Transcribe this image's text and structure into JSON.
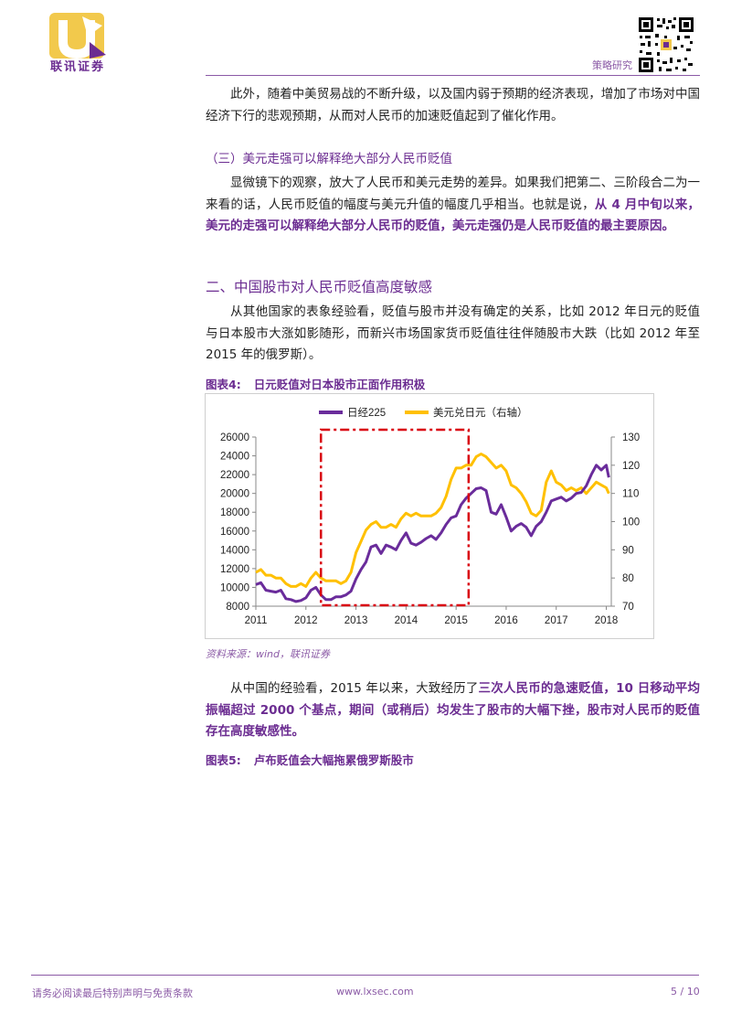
{
  "header": {
    "logo_text": "联讯证券",
    "section": "策略研究"
  },
  "paragraphs": {
    "p1": "此外，随着中美贸易战的不断升级，以及国内弱于预期的经济表现，增加了市场对中国经济下行的悲观预期，从而对人民币的加速贬值起到了催化作用。",
    "sub3": "（三）美元走强可以解释绝大部分人民币贬值",
    "p2_a": "显微镜下的观察，放大了人民币和美元走势的差异。如果我们把第二、三阶段合二为一来看的话，人民币贬值的幅度与美元升值的幅度几乎相当。也就是说，",
    "p2_b": "从 4 月中旬以来，美元的走强可以解释绝大部分人民币的贬值，美元走强仍是人民币贬值的最主要原因。",
    "h2": "二、中国股市对人民币贬值高度敏感",
    "p3": "从其他国家的表象经验看，贬值与股市并没有确定的关系，比如 2012 年日元的贬值与日本股市大涨如影随形，而新兴市场国家货币贬值往往伴随股市大跌（比如 2012 年至 2015 年的俄罗斯）。",
    "p4_a": "从中国的经验看，2015 年以来，大致经历了",
    "p4_b": "三次人民币的急速贬值，10 日移动平均振幅超过 2000 个基点，期间（或稍后）均发生了股市的大幅下挫，股市对人民币的贬值存在高度敏感性。"
  },
  "figure4": {
    "label": "图表4:",
    "title": "日元贬值对日本股市正面作用积极",
    "source": "资料来源：wind，联讯证券"
  },
  "figure5": {
    "label": "图表5:",
    "title": "卢布贬值会大幅拖累俄罗斯股市"
  },
  "chart_data": {
    "type": "line",
    "legend": [
      "日经225",
      "美元兑日元（右轴）"
    ],
    "legend_placement": "top",
    "x_ticks": [
      "2011",
      "2012",
      "2013",
      "2014",
      "2015",
      "2016",
      "2017",
      "2018"
    ],
    "y_left_ticks": [
      "8000",
      "10000",
      "12000",
      "14000",
      "16000",
      "18000",
      "20000",
      "22000",
      "24000",
      "26000"
    ],
    "y_right_ticks": [
      "70",
      "80",
      "90",
      "100",
      "110",
      "120",
      "130"
    ],
    "y_left_range": [
      8000,
      26000
    ],
    "y_right_range": [
      70,
      130
    ],
    "x_range": [
      2011,
      2018.1
    ],
    "colors": {
      "nikkei": "#6a2c9b",
      "usdjpy": "#ffc000",
      "box": "#d9000d"
    },
    "highlight_box": {
      "x_start": 2012.3,
      "x_end": 2015.25,
      "y_left_bottom": 8100,
      "y_left_top": 26000
    },
    "series": [
      {
        "name": "日经225",
        "axis": "left",
        "x": [
          2011.0,
          2011.1,
          2011.2,
          2011.3,
          2011.4,
          2011.5,
          2011.6,
          2011.7,
          2011.8,
          2011.9,
          2012.0,
          2012.1,
          2012.2,
          2012.3,
          2012.4,
          2012.5,
          2012.6,
          2012.7,
          2012.8,
          2012.9,
          2013.0,
          2013.1,
          2013.2,
          2013.3,
          2013.4,
          2013.5,
          2013.6,
          2013.7,
          2013.8,
          2013.9,
          2014.0,
          2014.1,
          2014.2,
          2014.3,
          2014.4,
          2014.5,
          2014.6,
          2014.7,
          2014.8,
          2014.9,
          2015.0,
          2015.1,
          2015.2,
          2015.3,
          2015.4,
          2015.5,
          2015.6,
          2015.7,
          2015.8,
          2015.9,
          2016.0,
          2016.1,
          2016.2,
          2016.3,
          2016.4,
          2016.5,
          2016.6,
          2016.7,
          2016.8,
          2016.9,
          2017.0,
          2017.1,
          2017.2,
          2017.3,
          2017.4,
          2017.5,
          2017.6,
          2017.7,
          2017.8,
          2017.9,
          2018.0,
          2018.05
        ],
        "values": [
          10300,
          10500,
          9700,
          9600,
          9500,
          9700,
          8800,
          8700,
          8500,
          8600,
          8900,
          9700,
          10000,
          9200,
          8700,
          8700,
          9000,
          9000,
          9200,
          9600,
          10900,
          11900,
          12700,
          14300,
          14500,
          13600,
          14500,
          14300,
          14000,
          15000,
          15800,
          14700,
          14500,
          14800,
          15200,
          15500,
          15100,
          15800,
          16700,
          17400,
          17600,
          18800,
          19500,
          20000,
          20500,
          20600,
          20300,
          18000,
          17800,
          18800,
          17500,
          16000,
          16500,
          16800,
          16400,
          15500,
          16500,
          17000,
          18000,
          19200,
          19400,
          19600,
          19200,
          19500,
          20000,
          20100,
          20800,
          22000,
          23000,
          22500,
          23000,
          21700
        ]
      },
      {
        "name": "美元兑日元（右轴）",
        "axis": "right",
        "x": [
          2011.0,
          2011.1,
          2011.2,
          2011.3,
          2011.4,
          2011.5,
          2011.6,
          2011.7,
          2011.8,
          2011.9,
          2012.0,
          2012.1,
          2012.2,
          2012.3,
          2012.4,
          2012.5,
          2012.6,
          2012.7,
          2012.8,
          2012.9,
          2013.0,
          2013.1,
          2013.2,
          2013.3,
          2013.4,
          2013.5,
          2013.6,
          2013.7,
          2013.8,
          2013.9,
          2014.0,
          2014.1,
          2014.2,
          2014.3,
          2014.4,
          2014.5,
          2014.6,
          2014.7,
          2014.8,
          2014.9,
          2015.0,
          2015.1,
          2015.2,
          2015.3,
          2015.4,
          2015.5,
          2015.6,
          2015.7,
          2015.8,
          2015.9,
          2016.0,
          2016.1,
          2016.2,
          2016.3,
          2016.4,
          2016.5,
          2016.6,
          2016.7,
          2016.8,
          2016.9,
          2017.0,
          2017.1,
          2017.2,
          2017.3,
          2017.4,
          2017.5,
          2017.6,
          2017.7,
          2017.8,
          2017.9,
          2018.0,
          2018.05
        ],
        "values": [
          82,
          83,
          81,
          81,
          80,
          80,
          78,
          77,
          77,
          78,
          77,
          80,
          82,
          80,
          79,
          79,
          79,
          78,
          79,
          82,
          89,
          93,
          97,
          99,
          100,
          98,
          98,
          99,
          98,
          101,
          103,
          102,
          103,
          102,
          102,
          102,
          103,
          105,
          109,
          115,
          119,
          119,
          120,
          120,
          123,
          124,
          123,
          121,
          119,
          120,
          118,
          113,
          112,
          110,
          107,
          103,
          102,
          104,
          114,
          118,
          114,
          113,
          111,
          112,
          111,
          112,
          110,
          112,
          114,
          113,
          112,
          110
        ]
      }
    ]
  },
  "footer": {
    "left": "请务必阅读最后特别声明与免责条款",
    "mid": "www.lxsec.com",
    "page": "5 / 10"
  }
}
